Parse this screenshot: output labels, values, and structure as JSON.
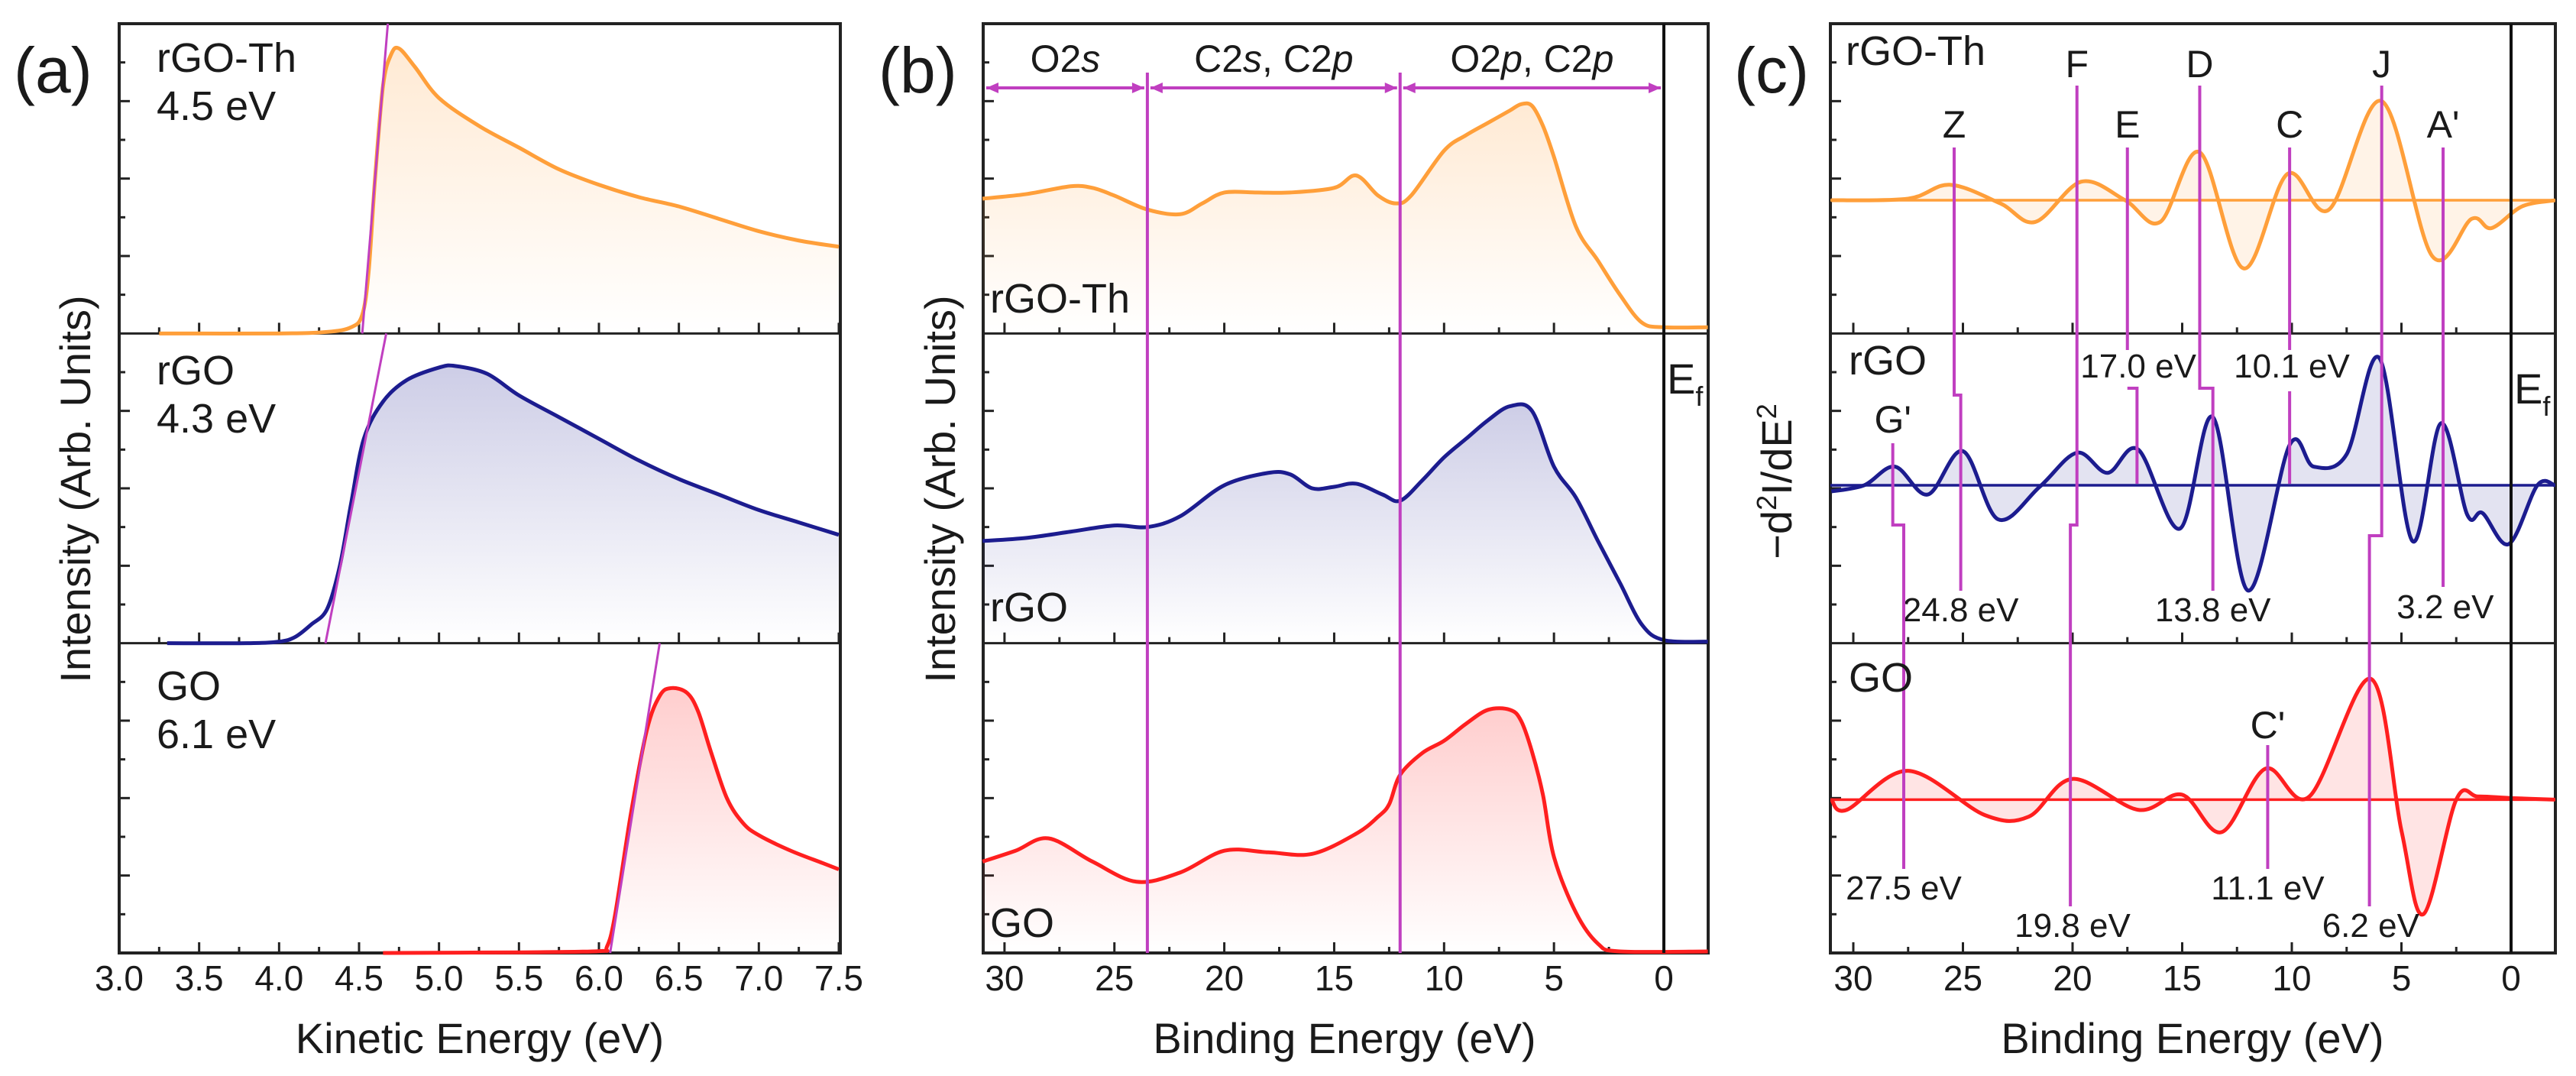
{
  "colors": {
    "rGO-Th": "#ff9f3a",
    "rGO": "#1c1c8f",
    "GO": "#ff1f1f",
    "marker": "#c03fc0",
    "fermi": "#111111"
  },
  "chart_data": [
    {
      "panel": "(a)",
      "type": "line",
      "xlabel": "Kinetic Energy (eV)",
      "ylabel": "Intensity (Arb. Units)",
      "xlim": [
        3.0,
        7.5
      ],
      "xticks": [
        "3.0",
        "3.5",
        "4.0",
        "4.5",
        "5.0",
        "5.5",
        "6.0",
        "6.5",
        "7.0",
        "7.5"
      ],
      "stacked_subpanels": true,
      "series": [
        {
          "name": "rGO-Th",
          "annotation": "4.5 eV",
          "color_key": "rGO-Th",
          "points": [
            [
              3.25,
              0
            ],
            [
              4.0,
              0
            ],
            [
              4.3,
              0.005
            ],
            [
              4.45,
              0.02
            ],
            [
              4.52,
              0.06
            ],
            [
              4.56,
              0.2
            ],
            [
              4.6,
              0.5
            ],
            [
              4.65,
              0.8
            ],
            [
              4.7,
              0.9
            ],
            [
              4.75,
              0.92
            ],
            [
              4.85,
              0.86
            ],
            [
              5.0,
              0.76
            ],
            [
              5.25,
              0.67
            ],
            [
              5.5,
              0.6
            ],
            [
              5.75,
              0.53
            ],
            [
              6.0,
              0.48
            ],
            [
              6.25,
              0.44
            ],
            [
              6.5,
              0.41
            ],
            [
              6.75,
              0.37
            ],
            [
              7.0,
              0.33
            ],
            [
              7.25,
              0.3
            ],
            [
              7.5,
              0.28
            ]
          ],
          "onset_line": [
            [
              4.52,
              0
            ],
            [
              4.68,
              1.0
            ]
          ]
        },
        {
          "name": "rGO",
          "annotation": "4.3 eV",
          "color_key": "rGO",
          "points": [
            [
              3.3,
              0
            ],
            [
              3.8,
              0
            ],
            [
              4.0,
              0.005
            ],
            [
              4.1,
              0.02
            ],
            [
              4.2,
              0.06
            ],
            [
              4.3,
              0.11
            ],
            [
              4.38,
              0.25
            ],
            [
              4.45,
              0.45
            ],
            [
              4.53,
              0.66
            ],
            [
              4.65,
              0.78
            ],
            [
              4.8,
              0.85
            ],
            [
              5.0,
              0.89
            ],
            [
              5.1,
              0.895
            ],
            [
              5.3,
              0.87
            ],
            [
              5.5,
              0.8
            ],
            [
              5.75,
              0.73
            ],
            [
              6.0,
              0.66
            ],
            [
              6.25,
              0.59
            ],
            [
              6.5,
              0.53
            ],
            [
              6.75,
              0.48
            ],
            [
              7.0,
              0.43
            ],
            [
              7.25,
              0.39
            ],
            [
              7.5,
              0.35
            ]
          ],
          "onset_line": [
            [
              4.29,
              0
            ],
            [
              4.67,
              1.0
            ]
          ]
        },
        {
          "name": "GO",
          "annotation": "6.1 eV",
          "color_key": "GO",
          "points": [
            [
              4.65,
              0
            ],
            [
              5.5,
              0.002
            ],
            [
              6.0,
              0.006
            ],
            [
              6.05,
              0.02
            ],
            [
              6.1,
              0.12
            ],
            [
              6.2,
              0.45
            ],
            [
              6.3,
              0.72
            ],
            [
              6.38,
              0.83
            ],
            [
              6.45,
              0.855
            ],
            [
              6.55,
              0.84
            ],
            [
              6.62,
              0.78
            ],
            [
              6.7,
              0.65
            ],
            [
              6.8,
              0.5
            ],
            [
              6.9,
              0.42
            ],
            [
              7.0,
              0.38
            ],
            [
              7.2,
              0.33
            ],
            [
              7.4,
              0.29
            ],
            [
              7.5,
              0.27
            ]
          ],
          "onset_line": [
            [
              6.07,
              0
            ],
            [
              6.38,
              1.0
            ]
          ]
        }
      ]
    },
    {
      "panel": "(b)",
      "type": "line",
      "xlabel": "Binding Energy (eV)",
      "ylabel": "Intensity (Arb. Units)",
      "xlim": [
        31,
        -2
      ],
      "xticks": [
        "30",
        "25",
        "20",
        "15",
        "10",
        "5",
        "0"
      ],
      "region_boundaries": [
        23.5,
        12.0
      ],
      "regions": [
        {
          "from": 31,
          "to": 23.5,
          "parts": [
            "O2",
            "s"
          ]
        },
        {
          "from": 23.5,
          "to": 12.0,
          "parts": [
            "C2",
            "s",
            ", C2",
            "p"
          ]
        },
        {
          "from": 12.0,
          "to": 0,
          "parts": [
            "O2",
            "p",
            ", C2",
            "p"
          ]
        }
      ],
      "fermi": {
        "x": 0,
        "label": "E",
        "sub": "f"
      },
      "series": [
        {
          "name": "rGO-Th",
          "color_key": "rGO-Th",
          "points": [
            [
              31,
              0.435
            ],
            [
              29,
              0.45
            ],
            [
              27,
              0.475
            ],
            [
              26,
              0.47
            ],
            [
              25,
              0.445
            ],
            [
              23.5,
              0.4
            ],
            [
              22,
              0.385
            ],
            [
              21,
              0.42
            ],
            [
              20,
              0.455
            ],
            [
              18.5,
              0.455
            ],
            [
              17,
              0.455
            ],
            [
              15,
              0.47
            ],
            [
              14,
              0.51
            ],
            [
              13,
              0.445
            ],
            [
              12.2,
              0.42
            ],
            [
              11.5,
              0.445
            ],
            [
              10,
              0.59
            ],
            [
              9,
              0.64
            ],
            [
              8,
              0.68
            ],
            [
              7,
              0.72
            ],
            [
              6.5,
              0.74
            ],
            [
              6,
              0.735
            ],
            [
              5.5,
              0.67
            ],
            [
              5,
              0.57
            ],
            [
              4,
              0.345
            ],
            [
              3,
              0.235
            ],
            [
              2,
              0.125
            ],
            [
              1,
              0.035
            ],
            [
              0,
              0.02
            ],
            [
              -2,
              0.02
            ]
          ]
        },
        {
          "name": "rGO",
          "color_key": "rGO",
          "points": [
            [
              31,
              0.33
            ],
            [
              29,
              0.34
            ],
            [
              27,
              0.36
            ],
            [
              25,
              0.38
            ],
            [
              23.5,
              0.375
            ],
            [
              22,
              0.41
            ],
            [
              20,
              0.51
            ],
            [
              18,
              0.55
            ],
            [
              17,
              0.545
            ],
            [
              16,
              0.5
            ],
            [
              15,
              0.505
            ],
            [
              14,
              0.515
            ],
            [
              12.8,
              0.48
            ],
            [
              12,
              0.46
            ],
            [
              11,
              0.525
            ],
            [
              10,
              0.6
            ],
            [
              9,
              0.66
            ],
            [
              8,
              0.72
            ],
            [
              7,
              0.765
            ],
            [
              6,
              0.75
            ],
            [
              5,
              0.57
            ],
            [
              4,
              0.47
            ],
            [
              3,
              0.33
            ],
            [
              2,
              0.195
            ],
            [
              1,
              0.06
            ],
            [
              0,
              0.01
            ],
            [
              -2,
              0.005
            ]
          ]
        },
        {
          "name": "GO",
          "color_key": "GO",
          "points": [
            [
              31,
              0.295
            ],
            [
              29.5,
              0.33
            ],
            [
              28,
              0.37
            ],
            [
              26,
              0.295
            ],
            [
              24,
              0.23
            ],
            [
              22,
              0.26
            ],
            [
              20,
              0.33
            ],
            [
              18,
              0.325
            ],
            [
              16,
              0.32
            ],
            [
              14,
              0.385
            ],
            [
              13,
              0.44
            ],
            [
              12.5,
              0.48
            ],
            [
              12,
              0.575
            ],
            [
              11,
              0.645
            ],
            [
              10,
              0.685
            ],
            [
              9,
              0.74
            ],
            [
              8,
              0.785
            ],
            [
              7,
              0.785
            ],
            [
              6.5,
              0.75
            ],
            [
              6,
              0.65
            ],
            [
              5.5,
              0.51
            ],
            [
              5,
              0.31
            ],
            [
              4,
              0.13
            ],
            [
              3,
              0.03
            ],
            [
              2,
              0.005
            ],
            [
              -2,
              0.005
            ]
          ]
        }
      ]
    },
    {
      "panel": "(c)",
      "type": "line",
      "xlabel": "Binding Energy (eV)",
      "ylabel_parts": [
        "−d",
        "2",
        "I/dE",
        "2"
      ],
      "xlim": [
        31,
        -2
      ],
      "xticks": [
        "30",
        "25",
        "20",
        "15",
        "10",
        "5",
        "0"
      ],
      "fermi": {
        "x": 0,
        "label": "E",
        "sub": "f"
      },
      "series": [
        {
          "name": "rGO-Th",
          "color_key": "rGO-Th",
          "points": [
            [
              31,
              0
            ],
            [
              27.5,
              0.005
            ],
            [
              25.6,
              0.05
            ],
            [
              23.3,
              -0.01
            ],
            [
              21.7,
              -0.07
            ],
            [
              19.6,
              0.06
            ],
            [
              17.6,
              0
            ],
            [
              16,
              -0.07
            ],
            [
              14.2,
              0.155
            ],
            [
              12.2,
              -0.22
            ],
            [
              10.2,
              0.085
            ],
            [
              8.3,
              -0.03
            ],
            [
              5.9,
              0.32
            ],
            [
              3.6,
              -0.18
            ],
            [
              1.8,
              -0.06
            ],
            [
              0.9,
              -0.09
            ],
            [
              -0.5,
              -0.02
            ],
            [
              -2,
              0
            ]
          ]
        },
        {
          "name": "rGO",
          "color_key": "rGO",
          "points": [
            [
              31,
              -0.02
            ],
            [
              29.5,
              0.0
            ],
            [
              28.1,
              0.06
            ],
            [
              26.6,
              -0.03
            ],
            [
              25,
              0.11
            ],
            [
              23.4,
              -0.11
            ],
            [
              21.5,
              -0.005
            ],
            [
              19.8,
              0.105
            ],
            [
              18.4,
              0.04
            ],
            [
              17,
              0.115
            ],
            [
              15.1,
              -0.14
            ],
            [
              13.6,
              0.22
            ],
            [
              12,
              -0.34
            ],
            [
              10.1,
              0.13
            ],
            [
              9,
              0.06
            ],
            [
              7.5,
              0.1
            ],
            [
              6,
              0.41
            ],
            [
              4.5,
              -0.18
            ],
            [
              3.2,
              0.2
            ],
            [
              2,
              -0.095
            ],
            [
              1.3,
              -0.09
            ],
            [
              0.1,
              -0.19
            ],
            [
              -1.2,
              0
            ],
            [
              -2,
              0
            ]
          ]
        },
        {
          "name": "GO",
          "color_key": "GO",
          "points": [
            [
              31,
              0
            ],
            [
              30.3,
              -0.033
            ],
            [
              27.5,
              0.093
            ],
            [
              24,
              -0.05
            ],
            [
              22,
              -0.055
            ],
            [
              20,
              0.067
            ],
            [
              17,
              -0.033
            ],
            [
              15,
              0.016
            ],
            [
              13.2,
              -0.105
            ],
            [
              11.2,
              0.1
            ],
            [
              9.2,
              0.01
            ],
            [
              6.4,
              0.39
            ],
            [
              5,
              -0.1
            ],
            [
              4,
              -0.37
            ],
            [
              2.5,
              0
            ],
            [
              1.5,
              0.01
            ],
            [
              0,
              0.005
            ],
            [
              -2,
              0
            ]
          ]
        }
      ],
      "markers": [
        {
          "label": "Z",
          "energy": "24.8 eV"
        },
        {
          "label": "F",
          "energy": "19.8 eV"
        },
        {
          "label": "E",
          "energy": "17.0 eV"
        },
        {
          "label": "D",
          "energy": "13.8 eV"
        },
        {
          "label": "C",
          "energy": "10.1 eV"
        },
        {
          "label": "J",
          "energy": "6.2 eV"
        },
        {
          "label": "A'",
          "energy": "3.2 eV"
        },
        {
          "label": "G'",
          "energy": "27.5 eV"
        },
        {
          "label": "C'",
          "energy": "11.1 eV"
        }
      ]
    }
  ]
}
